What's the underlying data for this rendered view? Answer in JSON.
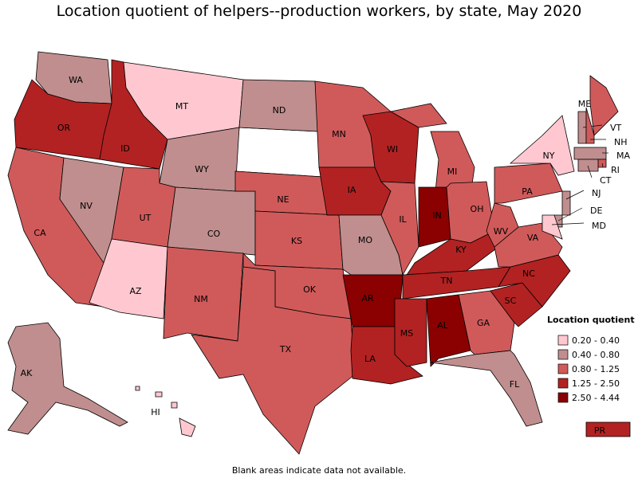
{
  "title": "Location quotient of helpers--production workers, by state, May 2020",
  "footnote": "Blank areas indicate data not available.",
  "legend": {
    "title": "Location quotient",
    "items": [
      {
        "label": "0.20 - 0.40",
        "color": "#ffc8d0"
      },
      {
        "label": "0.40 - 0.80",
        "color": "#c08e8e"
      },
      {
        "label": "0.80 - 1.25",
        "color": "#d05a5a"
      },
      {
        "label": "1.25 - 2.50",
        "color": "#b22222"
      },
      {
        "label": "2.50 - 4.44",
        "color": "#8b0000"
      }
    ]
  },
  "states": [
    {
      "abbr": "WA",
      "class": 1
    },
    {
      "abbr": "OR",
      "class": 3
    },
    {
      "abbr": "CA",
      "class": 2
    },
    {
      "abbr": "NV",
      "class": 1
    },
    {
      "abbr": "ID",
      "class": 3
    },
    {
      "abbr": "MT",
      "class": 0
    },
    {
      "abbr": "WY",
      "class": 1
    },
    {
      "abbr": "UT",
      "class": 2
    },
    {
      "abbr": "AZ",
      "class": 0
    },
    {
      "abbr": "CO",
      "class": 1
    },
    {
      "abbr": "NM",
      "class": 2
    },
    {
      "abbr": "ND",
      "class": 1
    },
    {
      "abbr": "NE",
      "class": 2
    },
    {
      "abbr": "KS",
      "class": 2
    },
    {
      "abbr": "OK",
      "class": 2
    },
    {
      "abbr": "TX",
      "class": 2
    },
    {
      "abbr": "MN",
      "class": 2
    },
    {
      "abbr": "IA",
      "class": 3
    },
    {
      "abbr": "MO",
      "class": 1
    },
    {
      "abbr": "AR",
      "class": 4
    },
    {
      "abbr": "LA",
      "class": 3
    },
    {
      "abbr": "WI",
      "class": 3
    },
    {
      "abbr": "IL",
      "class": 2
    },
    {
      "abbr": "MI",
      "class": 2
    },
    {
      "abbr": "IN",
      "class": 4
    },
    {
      "abbr": "OH",
      "class": 2
    },
    {
      "abbr": "KY",
      "class": 3
    },
    {
      "abbr": "TN",
      "class": 3
    },
    {
      "abbr": "MS",
      "class": 3
    },
    {
      "abbr": "AL",
      "class": 4
    },
    {
      "abbr": "GA",
      "class": 2
    },
    {
      "abbr": "FL",
      "class": 1
    },
    {
      "abbr": "SC",
      "class": 3
    },
    {
      "abbr": "NC",
      "class": 3
    },
    {
      "abbr": "VA",
      "class": 2
    },
    {
      "abbr": "WV",
      "class": 2
    },
    {
      "abbr": "PA",
      "class": 2
    },
    {
      "abbr": "NY",
      "class": 0
    },
    {
      "abbr": "ME",
      "class": 2
    },
    {
      "abbr": "VT",
      "class": 1
    },
    {
      "abbr": "NH",
      "class": 2
    },
    {
      "abbr": "MA",
      "class": 1
    },
    {
      "abbr": "RI",
      "class": 2
    },
    {
      "abbr": "CT",
      "class": 1
    },
    {
      "abbr": "NJ",
      "class": 1
    },
    {
      "abbr": "DE",
      "class": 1
    },
    {
      "abbr": "MD",
      "class": 0
    },
    {
      "abbr": "AK",
      "class": 1
    },
    {
      "abbr": "HI",
      "class": 0
    },
    {
      "abbr": "PR",
      "class": 3
    }
  ]
}
